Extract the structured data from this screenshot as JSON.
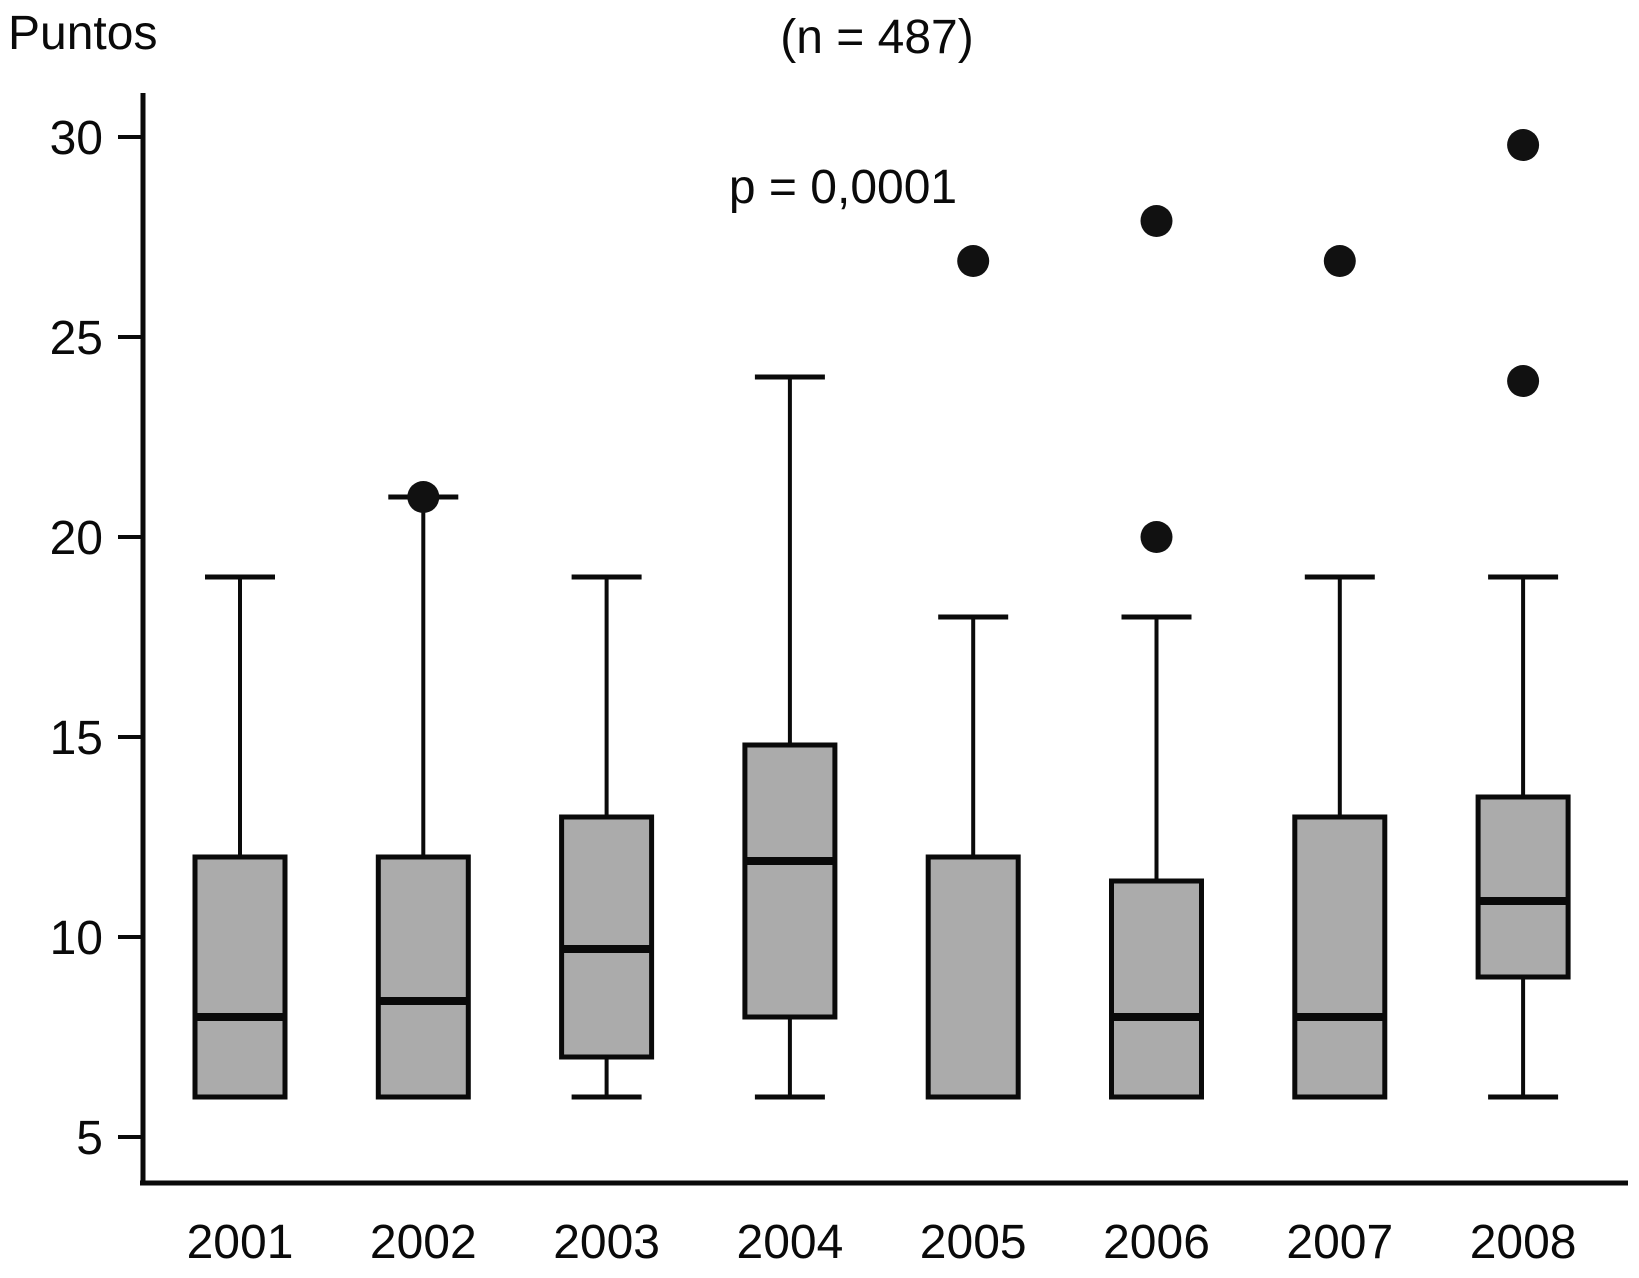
{
  "page": {
    "background": "#ffffff"
  },
  "header": {
    "ylabel": "Puntos",
    "sample_size": "(n = 487)",
    "p_value": "p = 0,0001"
  },
  "chart_data": {
    "type": "boxplot",
    "title": "(n = 487)",
    "ylabel": "Puntos",
    "annotation": "p = 0,0001",
    "categories": [
      "2001",
      "2002",
      "2003",
      "2004",
      "2005",
      "2006",
      "2007",
      "2008"
    ],
    "yticks": [
      5,
      10,
      15,
      20,
      25,
      30
    ],
    "ylim": [
      3.8,
      31.1
    ],
    "grid": false,
    "legend": "none",
    "colors": {
      "box_fill": "#ababab",
      "stroke": "#0a0a0a",
      "outlier_fill": "#111111"
    },
    "series": [
      {
        "category": "2001",
        "whisker_low": 6,
        "q1": 6,
        "median": 8,
        "q3": 12,
        "whisker_high": 19,
        "outliers": []
      },
      {
        "category": "2002",
        "whisker_low": 6,
        "q1": 6,
        "median": 8.4,
        "q3": 12,
        "whisker_high": 21,
        "outliers": [
          21
        ]
      },
      {
        "category": "2003",
        "whisker_low": 6,
        "q1": 7,
        "median": 9.7,
        "q3": 13,
        "whisker_high": 19,
        "outliers": []
      },
      {
        "category": "2004",
        "whisker_low": 6,
        "q1": 8,
        "median": 11.9,
        "q3": 14.8,
        "whisker_high": 24,
        "outliers": []
      },
      {
        "category": "2005",
        "whisker_low": 6,
        "q1": 6,
        "median": 6,
        "q3": 12,
        "whisker_high": 18,
        "outliers": [
          26.9
        ]
      },
      {
        "category": "2006",
        "whisker_low": 6,
        "q1": 6,
        "median": 8,
        "q3": 11.4,
        "whisker_high": 18,
        "outliers": [
          20,
          27.9
        ]
      },
      {
        "category": "2007",
        "whisker_low": 6,
        "q1": 6,
        "median": 8,
        "q3": 13,
        "whisker_high": 19,
        "outliers": [
          26.9
        ]
      },
      {
        "category": "2008",
        "whisker_low": 6,
        "q1": 9,
        "median": 10.9,
        "q3": 13.5,
        "whisker_high": 19,
        "outliers": [
          23.9,
          29.8
        ]
      }
    ]
  }
}
